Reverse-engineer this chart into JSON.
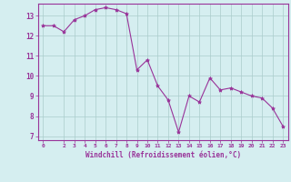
{
  "x": [
    0,
    1,
    2,
    3,
    4,
    5,
    6,
    7,
    8,
    9,
    10,
    11,
    12,
    13,
    14,
    15,
    16,
    17,
    18,
    19,
    20,
    21,
    22,
    23
  ],
  "y": [
    12.5,
    12.5,
    12.2,
    12.8,
    13.0,
    13.3,
    13.4,
    13.3,
    13.1,
    10.3,
    10.8,
    9.5,
    8.8,
    7.2,
    9.0,
    8.7,
    9.9,
    9.3,
    9.4,
    9.2,
    9.0,
    8.9,
    8.4,
    7.5
  ],
  "line_color": "#993399",
  "marker": "*",
  "marker_size": 3,
  "background_color": "#d5eef0",
  "grid_color": "#aacccc",
  "xlabel": "Windchill (Refroidissement éolien,°C)",
  "xlabel_color": "#993399",
  "tick_color": "#993399",
  "ylim": [
    6.8,
    13.6
  ],
  "xlim": [
    -0.5,
    23.5
  ],
  "yticks": [
    7,
    8,
    9,
    10,
    11,
    12,
    13
  ],
  "xticks": [
    0,
    2,
    3,
    4,
    5,
    6,
    7,
    8,
    9,
    10,
    11,
    12,
    13,
    14,
    15,
    16,
    17,
    18,
    19,
    20,
    21,
    22,
    23
  ],
  "xtick_labels": [
    "0",
    "2",
    "3",
    "4",
    "5",
    "6",
    "7",
    "8",
    "9",
    "10",
    "11",
    "12",
    "13",
    "14",
    "15",
    "16",
    "17",
    "18",
    "19",
    "20",
    "21",
    "22",
    "23"
  ]
}
